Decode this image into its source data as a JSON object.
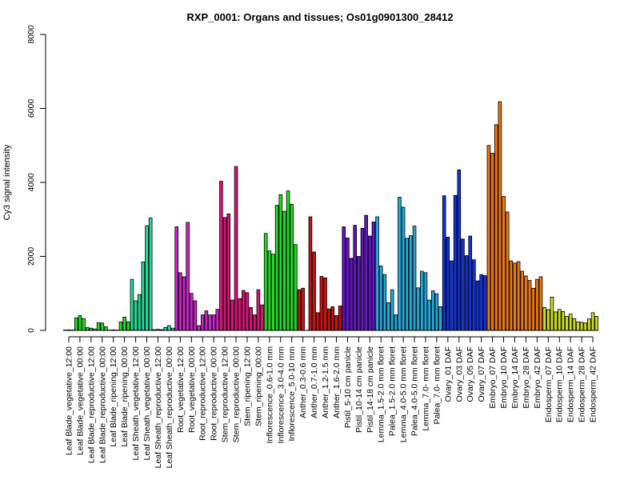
{
  "chart_data": {
    "type": "bar",
    "title": "RXP_0001: Organs and tissues; Os01g0901300_28412",
    "xlabel": "",
    "ylabel": "Cy3 signal intensity",
    "ylim": [
      0,
      8000
    ],
    "yticks": [
      0,
      2000,
      4000,
      6000,
      8000
    ],
    "grid": false,
    "legend": "none",
    "groups": [
      {
        "label": "Leaf Blade_vegetative_12:00",
        "color": "#22dd22",
        "values": [
          10,
          15,
          10
        ]
      },
      {
        "label": "Leaf Blade_vegetative_00:00",
        "color": "#22dd22",
        "values": [
          340,
          400,
          320
        ]
      },
      {
        "label": "Leaf Blade_reproductive_12:00",
        "color": "#22dd22",
        "values": [
          80,
          60,
          40
        ]
      },
      {
        "label": "Leaf Blade_reproductive_00:00",
        "color": "#22dd22",
        "values": [
          210,
          200,
          100
        ]
      },
      {
        "label": "Leaf Blade_ripening_12:00",
        "color": "#22dd22",
        "values": [
          10,
          15,
          10
        ]
      },
      {
        "label": "Leaf Blade_ripening_00:00",
        "color": "#22dd22",
        "values": [
          230,
          360,
          230
        ]
      },
      {
        "label": "Leaf Sheath_vegetative_12:00",
        "color": "#22dd99",
        "values": [
          1380,
          800,
          970
        ]
      },
      {
        "label": "Leaf Sheath_vegetative_00:00",
        "color": "#22dd99",
        "values": [
          1850,
          2830,
          3040
        ]
      },
      {
        "label": "Leaf Sheath_reproductive_12:00",
        "color": "#22dd99",
        "values": [
          20,
          30,
          20
        ]
      },
      {
        "label": "Leaf Sheath_reproductive_00:00",
        "color": "#22dd99",
        "values": [
          80,
          130,
          60
        ]
      },
      {
        "label": "Root_vegetative_12:00",
        "color": "#cc22cc",
        "values": [
          2800,
          1560,
          1450
        ]
      },
      {
        "label": "Root_vegetative_00:00",
        "color": "#cc22cc",
        "values": [
          2920,
          1000,
          800
        ]
      },
      {
        "label": "Root_reproductive_12:00",
        "color": "#cc22cc",
        "values": [
          130,
          420,
          530
        ]
      },
      {
        "label": "Root_reproductive_00:00",
        "color": "#cc22cc",
        "values": [
          420,
          420,
          570
        ]
      },
      {
        "label": "Stem_reproductive_12:00",
        "color": "#dd1177",
        "values": [
          4030,
          3050,
          3150
        ]
      },
      {
        "label": "Stem_reproductive_00:00",
        "color": "#dd1177",
        "values": [
          820,
          4430,
          860
        ]
      },
      {
        "label": "Stem_ripening_12:00",
        "color": "#dd1177",
        "values": [
          1080,
          1020,
          620
        ]
      },
      {
        "label": "Stem_ripening_00:00",
        "color": "#dd1177",
        "values": [
          420,
          1100,
          690
        ]
      },
      {
        "label": "Inflorescence_0.6-1.0 mm",
        "color": "#22dd22",
        "values": [
          2620,
          2150,
          2060
        ]
      },
      {
        "label": "Inflorescence_3.0-4.0 mm",
        "color": "#22dd22",
        "values": [
          3380,
          3670,
          3220
        ]
      },
      {
        "label": "Inflorescence_5.0-10 mm",
        "color": "#22dd22",
        "values": [
          3770,
          3410,
          2320
        ]
      },
      {
        "label": "Anther_0.3-0.6 mm",
        "color": "#cc1111",
        "values": [
          1100,
          1140,
          0
        ]
      },
      {
        "label": "Anther_0.7-1.0 mm",
        "color": "#cc1111",
        "values": [
          3070,
          2120,
          480
        ]
      },
      {
        "label": "Anther_1.2-1.5 mm",
        "color": "#cc1111",
        "values": [
          1460,
          1420,
          580
        ]
      },
      {
        "label": "Anther_1.6-2.0 mm",
        "color": "#cc1111",
        "values": [
          640,
          400,
          660
        ]
      },
      {
        "label": "Pistil_5-10 cm panicle",
        "color": "#6611cc",
        "values": [
          2800,
          2500,
          1950
        ]
      },
      {
        "label": "Pistil_10-14 cm panicle",
        "color": "#6611cc",
        "values": [
          2840,
          2000,
          2760
        ]
      },
      {
        "label": "Pistil_14-18 cm panicle",
        "color": "#6611cc",
        "values": [
          3110,
          2550,
          2930
        ]
      },
      {
        "label": "Lemma_1.5-2.0 mm floret",
        "color": "#22aadd",
        "values": [
          3070,
          1740,
          1510
        ]
      },
      {
        "label": "Palea_1.5-2.0 mm floret",
        "color": "#22aadd",
        "values": [
          750,
          1100,
          420
        ]
      },
      {
        "label": "Lemma_4.0-5.0 mm floret",
        "color": "#22aadd",
        "values": [
          3600,
          3330,
          2490
        ]
      },
      {
        "label": "Palea_4.0-5.0 mm floret",
        "color": "#22aadd",
        "values": [
          2560,
          2820,
          1150
        ]
      },
      {
        "label": "Lemma_7.0- mm floret",
        "color": "#22aadd",
        "values": [
          1600,
          1560,
          820
        ]
      },
      {
        "label": "Palea_7.0- mm floret",
        "color": "#22aadd",
        "values": [
          1070,
          990,
          640
        ]
      },
      {
        "label": "Ovary_01 DAF",
        "color": "#1133dd",
        "values": [
          3640,
          2520,
          1880
        ]
      },
      {
        "label": "Ovary_03 DAF",
        "color": "#1133dd",
        "values": [
          3650,
          4340,
          2470
        ]
      },
      {
        "label": "Ovary_05 DAF",
        "color": "#1133dd",
        "values": [
          2020,
          2550,
          1910
        ]
      },
      {
        "label": "Ovary_07 DAF",
        "color": "#1133dd",
        "values": [
          1340,
          1510,
          1480
        ]
      },
      {
        "label": "Embryo_07 DAF",
        "color": "#ee7711",
        "values": [
          5000,
          4790,
          5560
        ]
      },
      {
        "label": "Embryo_10 DAF",
        "color": "#ee7711",
        "values": [
          6180,
          3620,
          3200
        ]
      },
      {
        "label": "Embryo_14 DAF",
        "color": "#ee7711",
        "values": [
          1880,
          1820,
          1860
        ]
      },
      {
        "label": "Embryo_28 DAF",
        "color": "#ee7711",
        "values": [
          1600,
          1470,
          1350
        ]
      },
      {
        "label": "Embryo_42 DAF",
        "color": "#ee7711",
        "values": [
          1140,
          1380,
          1450
        ]
      },
      {
        "label": "Endosperm_07 DAF",
        "color": "#ccdd22",
        "values": [
          620,
          560,
          900
        ]
      },
      {
        "label": "Endosperm_10 DAF",
        "color": "#ccdd22",
        "values": [
          500,
          570,
          510
        ]
      },
      {
        "label": "Endosperm_14 DAF",
        "color": "#ccdd22",
        "values": [
          380,
          440,
          320
        ]
      },
      {
        "label": "Endosperm_28 DAF",
        "color": "#ccdd22",
        "values": [
          230,
          220,
          200
        ]
      },
      {
        "label": "Endosperm_42 DAF",
        "color": "#ccdd22",
        "values": [
          310,
          480,
          380
        ]
      }
    ]
  }
}
